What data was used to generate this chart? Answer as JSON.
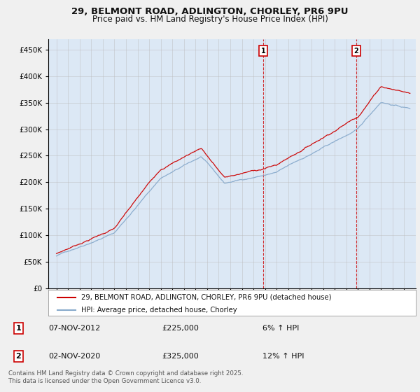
{
  "title_line1": "29, BELMONT ROAD, ADLINGTON, CHORLEY, PR6 9PU",
  "title_line2": "Price paid vs. HM Land Registry's House Price Index (HPI)",
  "legend_label_red": "29, BELMONT ROAD, ADLINGTON, CHORLEY, PR6 9PU (detached house)",
  "legend_label_blue": "HPI: Average price, detached house, Chorley",
  "annotation1_date": "07-NOV-2012",
  "annotation1_price": "£225,000",
  "annotation1_hpi": "6% ↑ HPI",
  "annotation1_year": 2012.85,
  "annotation2_date": "02-NOV-2020",
  "annotation2_price": "£325,000",
  "annotation2_hpi": "12% ↑ HPI",
  "annotation2_year": 2020.85,
  "footer": "Contains HM Land Registry data © Crown copyright and database right 2025.\nThis data is licensed under the Open Government Licence v3.0.",
  "ylim": [
    0,
    470000
  ],
  "yticks": [
    0,
    50000,
    100000,
    150000,
    200000,
    250000,
    300000,
    350000,
    400000,
    450000
  ],
  "color_red": "#cc0000",
  "color_blue": "#88aacc",
  "plot_bg": "#dce8f5",
  "fig_bg": "#f0f0f0"
}
